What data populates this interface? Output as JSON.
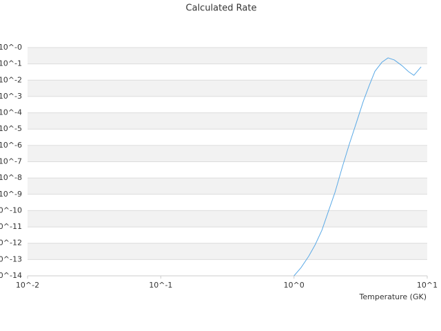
{
  "chart_data": {
    "type": "line",
    "title": "Calculated Rate",
    "x_label": "Temperature (GK)",
    "log_x": true,
    "log_y": true,
    "grid": true,
    "xlim": [
      0.01,
      10
    ],
    "ylim": [
      1e-14,
      1
    ],
    "xticks": [
      {
        "value": 0.01,
        "label": "10^-2"
      },
      {
        "value": 0.1,
        "label": "10^-1"
      },
      {
        "value": 1,
        "label": "10^0"
      },
      {
        "value": 10,
        "label": "10^1"
      }
    ],
    "yticks": [
      {
        "value": 1e-14,
        "label": "10^-14"
      },
      {
        "value": 1e-13,
        "label": "10^-13"
      },
      {
        "value": 1e-12,
        "label": "10^-12"
      },
      {
        "value": 1e-11,
        "label": "10^-11"
      },
      {
        "value": 1e-10,
        "label": "10^-10"
      },
      {
        "value": 1e-09,
        "label": "10^-9"
      },
      {
        "value": 1e-08,
        "label": "10^-8"
      },
      {
        "value": 1e-07,
        "label": "10^-7"
      },
      {
        "value": 1e-06,
        "label": "10^-6"
      },
      {
        "value": 1e-05,
        "label": "10^-5"
      },
      {
        "value": 0.0001,
        "label": "10^-4"
      },
      {
        "value": 0.001,
        "label": "10^-3"
      },
      {
        "value": 0.01,
        "label": "10^-2"
      },
      {
        "value": 0.1,
        "label": "10^-1"
      },
      {
        "value": 1,
        "label": "10^-0"
      }
    ],
    "x": [
      1,
      1.13,
      1.29,
      1.44,
      1.62,
      1.82,
      2.03,
      2.31,
      2.61,
      2.94,
      3.31,
      3.68,
      4.05,
      4.57,
      5.08,
      5.66,
      6.45,
      7.25,
      7.94,
      9.0
    ],
    "series": [
      {
        "color": "#5aa9e6",
        "values": [
          1e-14,
          3.2e-14,
          1.6e-13,
          7.9e-13,
          6.3e-12,
          1e-10,
          1.3e-09,
          5e-08,
          1.3e-06,
          2.5e-05,
          0.0005,
          0.005,
          0.035,
          0.126,
          0.234,
          0.174,
          0.079,
          0.033,
          0.02,
          0.066
        ]
      }
    ]
  }
}
